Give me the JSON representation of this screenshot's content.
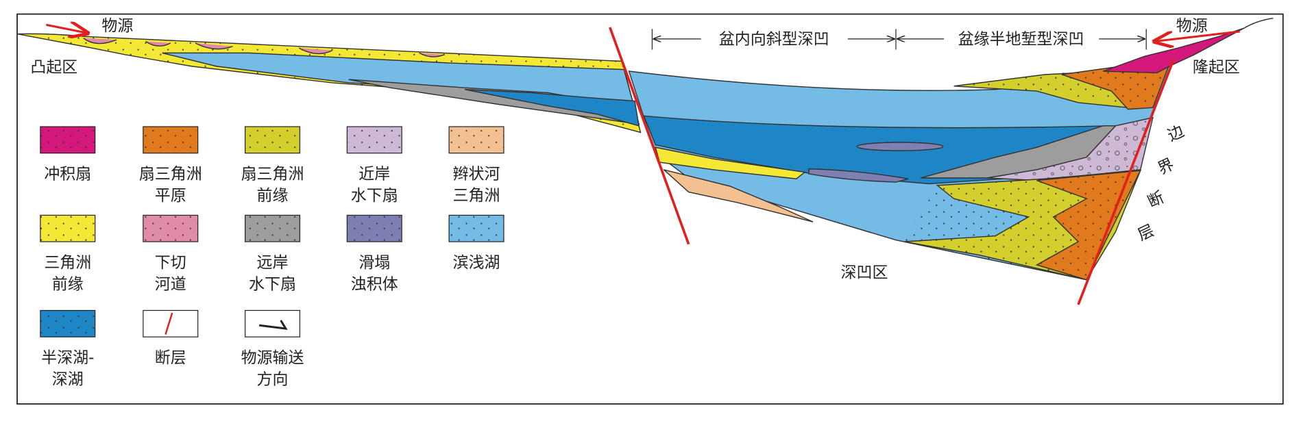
{
  "labels": {
    "source_left": "物源",
    "source_right": "物源",
    "uplift_left": "凸起区",
    "uplift_right": "隆起区",
    "deep_sag": "深凹区",
    "syncline_sag": "盆内向斜型深凹",
    "half_graben_sag": "盆缘半地堑型深凹",
    "boundary_fault": [
      "边",
      "界",
      "断",
      "层"
    ]
  },
  "legend": [
    {
      "label": [
        "冲积扇"
      ],
      "color": "#d4177a"
    },
    {
      "label": [
        "扇三角洲",
        "平原"
      ],
      "color": "#e07a1c"
    },
    {
      "label": [
        "扇三角洲",
        "前缘"
      ],
      "color": "#d3cf2c"
    },
    {
      "label": [
        "近岸",
        "水下扇"
      ],
      "color": "#cdb8d6"
    },
    {
      "label": [
        "辫状河",
        "三角洲"
      ],
      "color": "#f3c191"
    },
    {
      "label": [
        "三角洲",
        "前缘"
      ],
      "color": "#f3e935"
    },
    {
      "label": [
        "下切",
        "河道"
      ],
      "color": "#e08ba9"
    },
    {
      "label": [
        "远岸",
        "水下扇"
      ],
      "color": "#9d9d9d"
    },
    {
      "label": [
        "滑塌",
        "浊积体"
      ],
      "color": "#7e7fb3"
    },
    {
      "label": [
        "滨浅湖"
      ],
      "color": "#74bbe6"
    },
    {
      "label": [
        "半深湖-",
        "深湖"
      ],
      "color": "#1f86c6"
    }
  ],
  "legend_symbols": {
    "fault": [
      "断层"
    ],
    "source_direction": [
      "物源输送",
      "方向"
    ]
  }
}
